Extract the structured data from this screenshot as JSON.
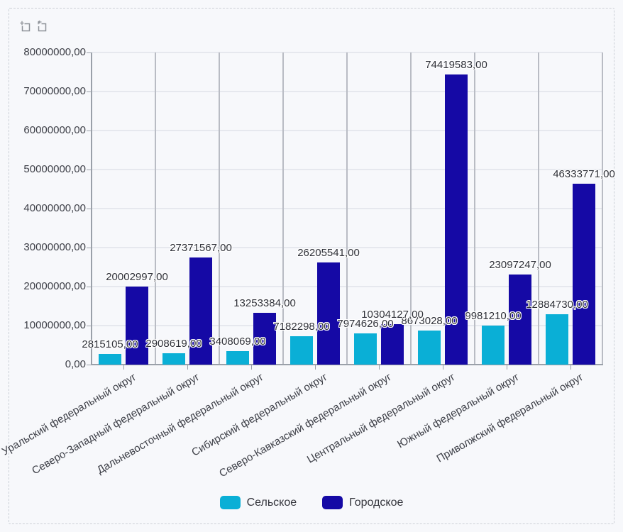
{
  "widget": {
    "toolbar": {
      "zoom_selection_icon": "zoom-selection-icon",
      "undo_zoom_icon": "undo-zoom-icon"
    }
  },
  "chart_data": {
    "type": "bar",
    "title": "",
    "xlabel": "",
    "ylabel": "",
    "ylim": [
      0,
      80000000
    ],
    "grid": true,
    "legend_position": "bottom",
    "y_tick_labels": [
      "0,00",
      "10000000,00",
      "20000000,00",
      "30000000,00",
      "40000000,00",
      "50000000,00",
      "60000000,00",
      "70000000,00",
      "80000000,00"
    ],
    "categories": [
      "Уральский федеральный округ",
      "Северо-Западный федеральный округ",
      "Дальневосточный федеральный округ",
      "Сибирский федеральный округ",
      "Северо-Кавказский федеральный округ",
      "Центральный федеральный округ",
      "Южный федеральный округ",
      "Приволжский федеральный округ"
    ],
    "series": [
      {
        "name": "Сельское",
        "color": "#0aafd6",
        "values": [
          2815105,
          2908619,
          3408069,
          7182298,
          7974626,
          8673028,
          9981210,
          12884730
        ],
        "labels": [
          "2815105,00",
          "2908619,00",
          "3408069,00",
          "7182298,00",
          "7974626,00",
          "8673028,00",
          "9981210,00",
          "12884730,00"
        ]
      },
      {
        "name": "Городское",
        "color": "#1509a5",
        "values": [
          20002997,
          27371567,
          13253384,
          26205541,
          10304127,
          74419583,
          23097247,
          46333771
        ],
        "labels": [
          "20002997,00",
          "27371567,00",
          "13253384,00",
          "26205541,00",
          "10304127,00",
          "74419583,00",
          "23097247,00",
          "46333771,00"
        ]
      }
    ]
  }
}
